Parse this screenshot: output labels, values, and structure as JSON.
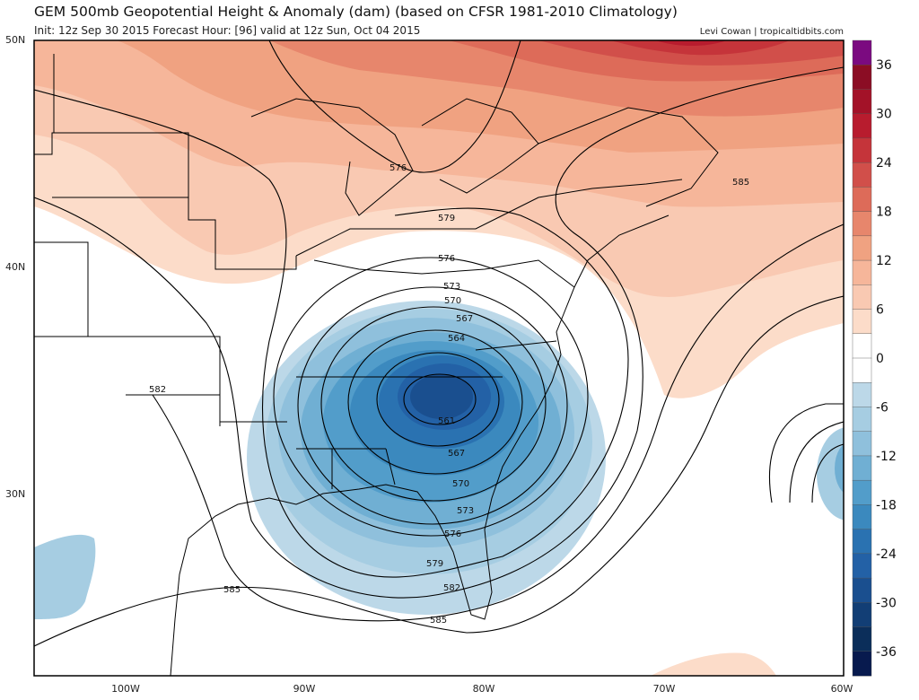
{
  "header": {
    "title": "GEM 500mb Geopotential Height & Anomaly (dam) (based on CFSR 1981-2010 Climatology)",
    "subtitle": "Init: 12z Sep 30 2015   Forecast Hour: [96]   valid at 12z Sun, Oct 04 2015",
    "credit": "Levi Cowan | tropicaltidbits.com"
  },
  "axes": {
    "lat_labels": [
      "50N",
      "40N",
      "30N"
    ],
    "lon_labels": [
      "100W",
      "90W",
      "80W",
      "70W",
      "60W"
    ]
  },
  "contour_labels": [
    "576",
    "579",
    "576",
    "573",
    "570",
    "567",
    "564",
    "561",
    "567",
    "570",
    "573",
    "576",
    "579",
    "582",
    "585",
    "585",
    "582",
    "585"
  ],
  "colorbar": {
    "tick_labels": [
      "36",
      "30",
      "24",
      "18",
      "12",
      "6",
      "0",
      "-6",
      "-12",
      "-18",
      "-24",
      "-30",
      "-36"
    ],
    "colors": [
      "#7b0a80",
      "#8b0d24",
      "#a31228",
      "#b81c2e",
      "#c5343a",
      "#d14f4a",
      "#dd6b59",
      "#e7866c",
      "#f0a281",
      "#f6b69a",
      "#f9c9b2",
      "#fcdcc9",
      "#ffffff",
      "#ffffff",
      "#bcd8e8",
      "#a6cde2",
      "#8fc0dc",
      "#70afd3",
      "#529dca",
      "#3b89be",
      "#2a72b1",
      "#2361a6",
      "#1a4f8f",
      "#123e75",
      "#0b2e5a",
      "#081a4e"
    ]
  }
}
